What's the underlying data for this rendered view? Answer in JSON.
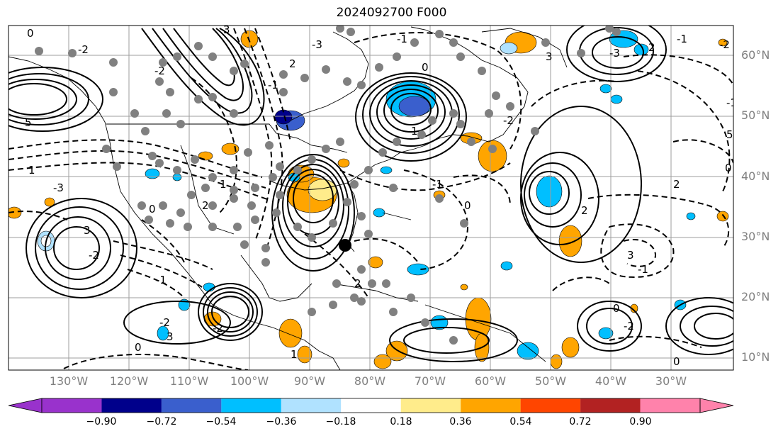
{
  "title": "2024092700 F000",
  "lat_labels": [
    "60°N",
    "50°N",
    "40°N",
    "30°N",
    "20°N",
    "10°N"
  ],
  "lon_labels": [
    "130°W",
    "120°W",
    "110°W",
    "100°W",
    "90°W",
    "80°W",
    "70°W",
    "60°W",
    "50°W",
    "40°W",
    "30°W"
  ],
  "colorbar": {
    "ticks": [
      "−0.90",
      "−0.72",
      "−0.54",
      "−0.36",
      "−0.18",
      "0.18",
      "0.36",
      "0.54",
      "0.72",
      "0.90"
    ],
    "colors": [
      "#9932cc",
      "#00008b",
      "#3a5fcd",
      "#00bfff",
      "#b0e2ff",
      "#ffffff",
      "#ffec8b",
      "#ffa500",
      "#ff4500",
      "#b22222",
      "#ff82ab"
    ]
  },
  "contour_labels": [
    "0",
    "-2",
    "3",
    "-3",
    "5",
    "-1",
    "2",
    "-2",
    "0",
    "-1",
    "1",
    "-2",
    "3",
    "-1",
    "5",
    "0",
    "-2",
    "-3",
    "2",
    "-1",
    "1",
    "-3",
    "3",
    "-2",
    "0",
    "1",
    "2",
    "3",
    "-2",
    "0",
    "-1",
    "-2",
    "1",
    "2",
    "0",
    "-1",
    "0",
    "-2",
    "2",
    "3",
    "-1",
    "2",
    "0"
  ]
}
